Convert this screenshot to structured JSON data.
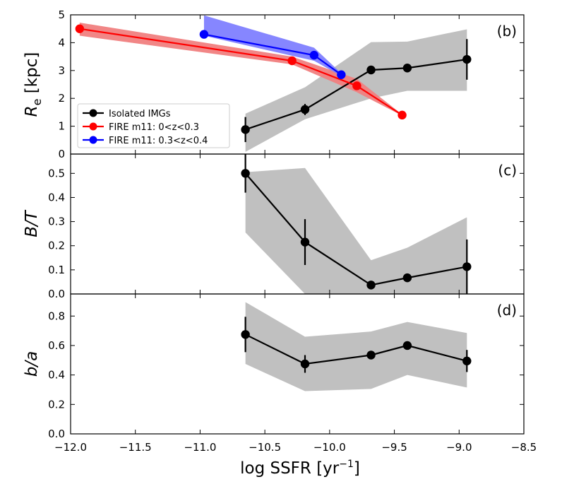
{
  "chart_data": {
    "type": "line",
    "xlabel": "log SSFR [yr",
    "xlabel_sup": "−1",
    "xlabel_close": "]",
    "xlim": [
      -12.0,
      -8.5
    ],
    "x_ticks": [
      -12.0,
      -11.5,
      -11.0,
      -10.5,
      -10.0,
      -9.5,
      -9.0,
      -8.5
    ],
    "x_tick_labels": [
      "−12.0",
      "−11.5",
      "−11.0",
      "−10.5",
      "−10.0",
      "−9.5",
      "−9.0",
      "−8.5"
    ],
    "colors": {
      "isolated": "#000000",
      "band": "#c0c0c0",
      "fire_low": "#ff0000",
      "fire_low_band": "#f08080",
      "fire_high": "#0000ff",
      "fire_high_band": "#8080ff"
    },
    "legend": [
      {
        "label": "Isolated IMGs",
        "color": "#000000"
      },
      {
        "label": "FIRE m11: 0<z<0.3",
        "color": "#ff0000"
      },
      {
        "label": "FIRE m11: 0.3<z<0.4",
        "color": "#0000ff"
      }
    ],
    "legend_position": "lower-left",
    "panels": [
      {
        "id": "b",
        "label": "(b)",
        "ylabel": "R",
        "ylabel_sub": "e",
        "ylabel_unit": " [kpc]",
        "ylim": [
          0,
          5
        ],
        "y_ticks": [
          0,
          1,
          2,
          3,
          4,
          5
        ],
        "y_tick_labels": [
          "0",
          "1",
          "2",
          "3",
          "4",
          "5"
        ],
        "series": [
          {
            "name": "Isolated IMGs",
            "x": [
              -10.65,
              -10.19,
              -9.68,
              -9.4,
              -8.94
            ],
            "y": [
              0.88,
              1.6,
              3.02,
              3.09,
              3.4
            ],
            "err": [
              0.45,
              0.2,
              0.05,
              0.08,
              0.73
            ],
            "band_low": [
              0.08,
              1.25,
              2.0,
              2.27,
              2.27
            ],
            "band_high": [
              1.45,
              2.4,
              4.02,
              4.04,
              4.48
            ]
          },
          {
            "name": "FIRE m11: 0<z<0.3",
            "x": [
              -11.93,
              -10.29,
              -9.79,
              -9.44
            ],
            "y": [
              4.5,
              3.35,
              2.45,
              1.4
            ],
            "band_low": [
              4.25,
              3.22,
              2.22,
              1.38
            ],
            "band_high": [
              4.72,
              3.5,
              2.7,
              1.42
            ]
          },
          {
            "name": "FIRE m11: 0.3<z<0.4",
            "x": [
              -10.97,
              -10.12,
              -9.91
            ],
            "y": [
              4.3,
              3.55,
              2.85
            ],
            "band_low": [
              4.25,
              3.35,
              2.8
            ],
            "band_high": [
              4.98,
              3.82,
              2.9
            ]
          }
        ]
      },
      {
        "id": "c",
        "label": "(c)",
        "ylabel": "B/T",
        "ylim": [
          0,
          0.58
        ],
        "y_ticks": [
          0.0,
          0.1,
          0.2,
          0.3,
          0.4,
          0.5
        ],
        "y_tick_labels": [
          "0.0",
          "0.1",
          "0.2",
          "0.3",
          "0.4",
          "0.5"
        ],
        "series": [
          {
            "name": "Isolated IMGs",
            "x": [
              -10.65,
              -10.19,
              -9.68,
              -9.4,
              -8.94
            ],
            "y": [
              0.5,
              0.215,
              0.037,
              0.067,
              0.113
            ],
            "err": [
              0.08,
              0.095,
              0.0,
              0.0,
              0.113
            ],
            "band_low": [
              0.255,
              0.0,
              0.0,
              0.0,
              0.0
            ],
            "band_high": [
              0.505,
              0.522,
              0.14,
              0.192,
              0.318
            ]
          }
        ]
      },
      {
        "id": "d",
        "label": "(d)",
        "ylabel": "b/a",
        "ylim": [
          0,
          0.95
        ],
        "y_ticks": [
          0.0,
          0.2,
          0.4,
          0.6,
          0.8
        ],
        "y_tick_labels": [
          "0.0",
          "0.2",
          "0.4",
          "0.6",
          "0.8"
        ],
        "series": [
          {
            "name": "Isolated IMGs",
            "x": [
              -10.65,
              -10.19,
              -9.68,
              -9.4,
              -8.94
            ],
            "y": [
              0.675,
              0.475,
              0.535,
              0.6,
              0.495
            ],
            "err": [
              0.12,
              0.06,
              0.0,
              0.0,
              0.075
            ],
            "band_low": [
              0.475,
              0.29,
              0.305,
              0.4,
              0.315
            ],
            "band_high": [
              0.895,
              0.66,
              0.695,
              0.76,
              0.685
            ]
          }
        ]
      }
    ]
  }
}
